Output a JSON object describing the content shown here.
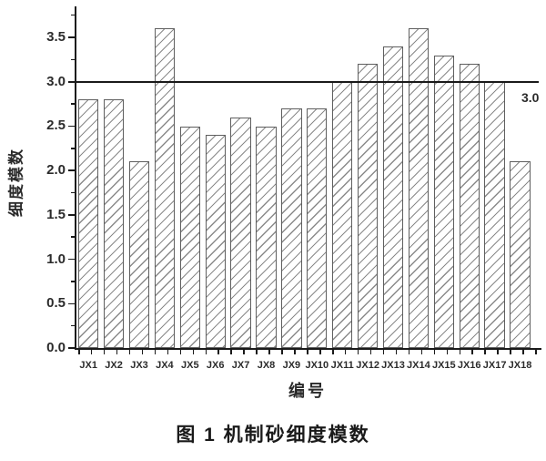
{
  "figure": {
    "caption": "图 1  机制砂细度模数"
  },
  "chart_data": {
    "type": "bar",
    "title": "",
    "xlabel": "编号",
    "ylabel": "细度模数",
    "categories": [
      "JX1",
      "JX2",
      "JX3",
      "JX4",
      "JX5",
      "JX6",
      "JX7",
      "JX8",
      "JX9",
      "JX10",
      "JX11",
      "JX12",
      "JX13",
      "JX14",
      "JX15",
      "JX16",
      "JX17",
      "JX18"
    ],
    "values": [
      2.8,
      2.8,
      2.1,
      3.6,
      2.5,
      2.4,
      2.6,
      2.5,
      2.7,
      2.7,
      3.0,
      3.2,
      3.4,
      3.6,
      3.3,
      3.2,
      3.0,
      2.1
    ],
    "ylim": [
      0,
      3.85
    ],
    "y_tick_step": 0.5,
    "y_minor_tick_step": 0.25,
    "y_tick_labels": [
      "0.0",
      "0.5",
      "1.0",
      "1.5",
      "2.0",
      "2.5",
      "3.0",
      "3.5"
    ],
    "reference_line": {
      "value": 3.0,
      "label": "3.0"
    },
    "grid": false,
    "legend": false,
    "bar_style": {
      "fill": "#ffffff",
      "hatch": "diagonal-forward",
      "hatch_color": "#8a8a8a",
      "edge_color": "#5f5f5f"
    },
    "axis_color": "#1a1a1a",
    "text_color": "#2b2b2b"
  }
}
